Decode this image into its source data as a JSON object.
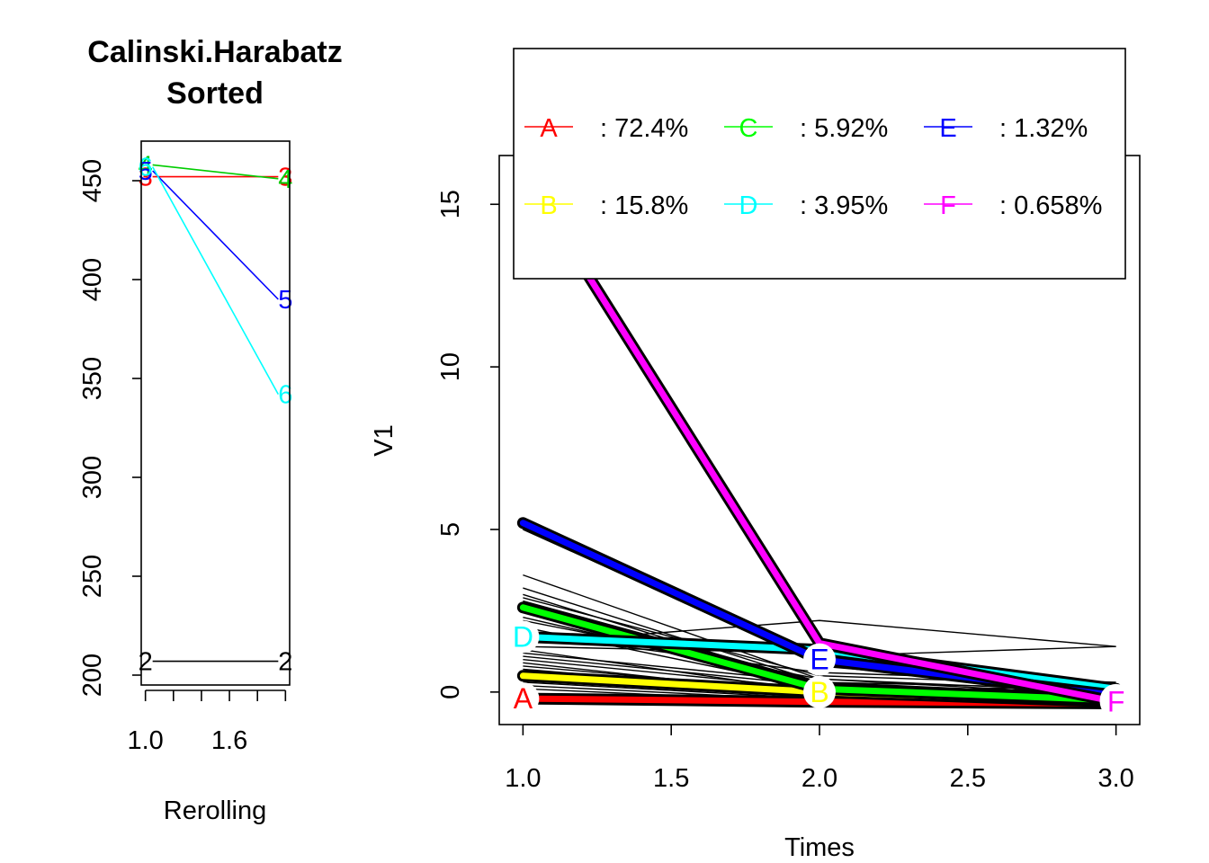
{
  "chart_data": [
    {
      "type": "line",
      "title": "Calinski.Harabatz",
      "subtitle": "Sorted",
      "xlabel": "Rerolling",
      "ylabel": "",
      "x": [
        1,
        2
      ],
      "xlim": [
        0.97,
        2.03
      ],
      "ylim": [
        195,
        470
      ],
      "xticks": [
        1.0,
        1.2,
        1.4,
        1.6,
        1.8,
        2.0
      ],
      "xtick_labels": [
        "1.0",
        "",
        "",
        "1.6",
        "",
        ""
      ],
      "yticks": [
        200,
        250,
        300,
        350,
        400,
        450
      ],
      "ytick_labels": [
        "200",
        "250",
        "300",
        "350",
        "400",
        "450"
      ],
      "grid": false,
      "series": [
        {
          "name": "2",
          "color": "#000000",
          "values": [
            207,
            207
          ]
        },
        {
          "name": "3",
          "color": "#ff0000",
          "values": [
            452,
            452
          ]
        },
        {
          "name": "4",
          "color": "#00cd00",
          "values": [
            458,
            451
          ]
        },
        {
          "name": "5",
          "color": "#0000ff",
          "values": [
            455,
            390
          ]
        },
        {
          "name": "6",
          "color": "#00ffff",
          "values": [
            457,
            342
          ]
        }
      ]
    },
    {
      "type": "line",
      "title": "",
      "xlabel": "Times",
      "ylabel": "V1",
      "x": [
        1,
        2,
        3
      ],
      "xlim": [
        0.92,
        3.08
      ],
      "ylim": [
        -1.0,
        16.5
      ],
      "xticks": [
        1.0,
        1.5,
        2.0,
        2.5,
        3.0
      ],
      "xtick_labels": [
        "1.0",
        "1.5",
        "2.0",
        "2.5",
        "3.0"
      ],
      "yticks": [
        0,
        5,
        10,
        15
      ],
      "ytick_labels": [
        "0",
        "5",
        "10",
        "15"
      ],
      "grid": false,
      "series": [
        {
          "name": "A",
          "color": "#ff0000",
          "values": [
            -0.2,
            -0.3,
            -0.35
          ]
        },
        {
          "name": "B",
          "color": "#ffff00",
          "values": [
            0.5,
            0.0,
            -0.3
          ]
        },
        {
          "name": "C",
          "color": "#00ff00",
          "values": [
            2.6,
            0.1,
            -0.25
          ]
        },
        {
          "name": "D",
          "color": "#00ffff",
          "values": [
            1.7,
            1.3,
            0.1
          ]
        },
        {
          "name": "E",
          "color": "#0000ff",
          "values": [
            5.2,
            1.0,
            -0.1
          ]
        },
        {
          "name": "F",
          "color": "#ff00ff",
          "values": [
            16.0,
            1.5,
            -0.3
          ]
        }
      ],
      "individual_lines": [
        [
          0.9,
          -0.1,
          -0.3
        ],
        [
          0.8,
          0.0,
          -0.25
        ],
        [
          0.7,
          -0.05,
          -0.3
        ],
        [
          0.6,
          -0.2,
          -0.3
        ],
        [
          0.3,
          -0.2,
          -0.35
        ],
        [
          0.2,
          -0.25,
          -0.3
        ],
        [
          0.1,
          -0.3,
          -0.35
        ],
        [
          -0.1,
          -0.3,
          -0.35
        ],
        [
          -0.3,
          -0.35,
          -0.4
        ],
        [
          1.0,
          0.1,
          -0.2
        ],
        [
          1.1,
          0.2,
          -0.1
        ],
        [
          0.4,
          -0.1,
          -0.3
        ],
        [
          3.6,
          0.4,
          0.0
        ],
        [
          3.2,
          0.3,
          0.1
        ],
        [
          3.0,
          0.2,
          0.0
        ],
        [
          2.9,
          0.5,
          0.2
        ],
        [
          2.8,
          0.3,
          -0.1
        ],
        [
          2.3,
          0.2,
          0.0
        ],
        [
          2.2,
          0.4,
          -0.1
        ],
        [
          2.0,
          0.1,
          -0.2
        ],
        [
          1.8,
          0.6,
          0.3
        ],
        [
          1.5,
          2.2,
          1.4
        ],
        [
          1.6,
          1.4,
          0.1
        ],
        [
          1.4,
          1.2,
          -0.1
        ],
        [
          5.1,
          1.1,
          1.4
        ],
        [
          5.3,
          0.8,
          0.0
        ],
        [
          5.0,
          0.9,
          0.1
        ],
        [
          1.3,
          0.0,
          0.2
        ],
        [
          1.2,
          0.3,
          -0.2
        ],
        [
          0.5,
          0.2,
          -0.1
        ]
      ],
      "legend": {
        "placement": "top",
        "entries": [
          {
            "symbol": "A",
            "label": ": 72.4%",
            "color": "#ff0000"
          },
          {
            "symbol": "B",
            "label": ": 15.8%",
            "color": "#ffff00"
          },
          {
            "symbol": "C",
            "label": ": 5.92%",
            "color": "#00ff00"
          },
          {
            "symbol": "D",
            "label": ": 3.95%",
            "color": "#00ffff"
          },
          {
            "symbol": "E",
            "label": ": 1.32%",
            "color": "#0000ff"
          },
          {
            "symbol": "F",
            "label": ": 0.658%",
            "color": "#ff00ff"
          }
        ]
      }
    }
  ]
}
